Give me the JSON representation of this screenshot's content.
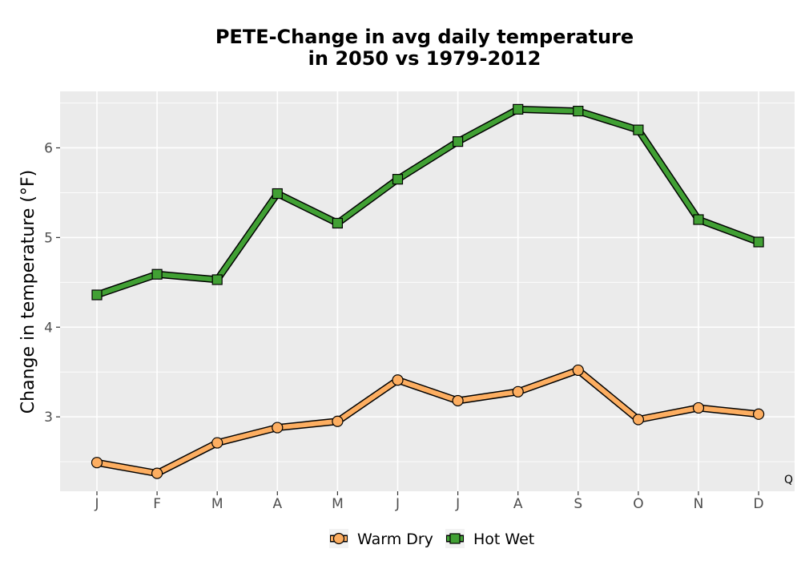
{
  "chart_data": {
    "type": "line",
    "title_lines": [
      "PETE-Change in avg daily temperature",
      "in 2050 vs 1979-2012"
    ],
    "xlabel": "",
    "ylabel": "Change in temperature (°F)",
    "categories": [
      "J",
      "F",
      "M",
      "A",
      "M",
      "J",
      "J",
      "A",
      "S",
      "O",
      "N",
      "D"
    ],
    "yticks": [
      3,
      4,
      5,
      6
    ],
    "ylim": [
      2.17,
      6.63
    ],
    "grid": true,
    "legend_position": "bottom",
    "annotation": "Q",
    "series": [
      {
        "name": "Warm Dry",
        "marker": "circle",
        "color": "#fdae61",
        "values": [
          2.49,
          2.37,
          2.71,
          2.88,
          2.95,
          3.41,
          3.18,
          3.28,
          3.52,
          2.97,
          3.1,
          3.03
        ]
      },
      {
        "name": "Hot Wet",
        "marker": "square",
        "color": "#41a034",
        "values": [
          4.36,
          4.59,
          4.53,
          5.49,
          5.16,
          5.65,
          6.07,
          6.43,
          6.41,
          6.2,
          5.2,
          4.95
        ]
      }
    ]
  }
}
